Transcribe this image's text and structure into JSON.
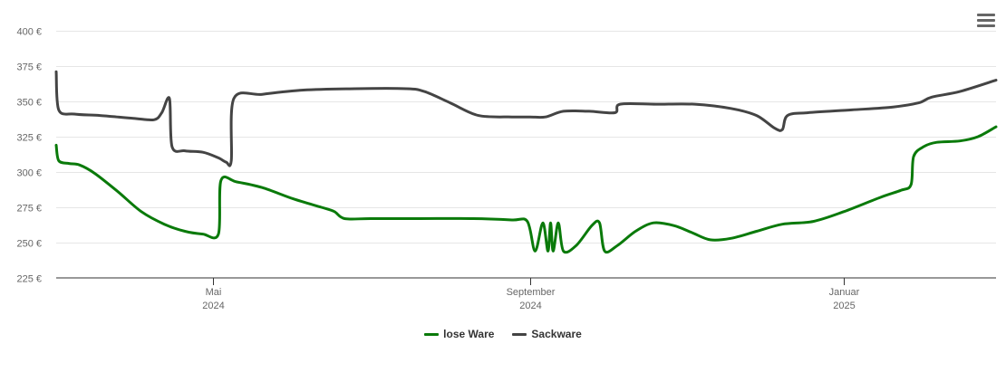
{
  "chart_data": {
    "type": "line",
    "yticks": [
      "225 €",
      "250 €",
      "275 €",
      "300 €",
      "325 €",
      "350 €",
      "375 €",
      "400 €"
    ],
    "ylim": [
      225,
      400
    ],
    "ytick_values": [
      225,
      250,
      275,
      300,
      325,
      350,
      375,
      400
    ],
    "xlim": [
      "2024-03-01",
      "2025-03-01"
    ],
    "xticks": [
      {
        "date": "2024-05-01",
        "month": "Mai",
        "year": "2024"
      },
      {
        "date": "2024-09-01",
        "month": "September",
        "year": "2024"
      },
      {
        "date": "2025-01-01",
        "month": "Januar",
        "year": "2025"
      }
    ],
    "grid": true,
    "legend_position": "bottom-center",
    "series": [
      {
        "name": "lose Ware",
        "color": "#0a7a0a",
        "points": [
          [
            "2024-03-01",
            319
          ],
          [
            "2024-03-02",
            308
          ],
          [
            "2024-03-06",
            306
          ],
          [
            "2024-03-10",
            305
          ],
          [
            "2024-03-16",
            299
          ],
          [
            "2024-03-25",
            286
          ],
          [
            "2024-04-03",
            272
          ],
          [
            "2024-04-12",
            263
          ],
          [
            "2024-04-20",
            258
          ],
          [
            "2024-04-27",
            256
          ],
          [
            "2024-05-03",
            256
          ],
          [
            "2024-05-04",
            294
          ],
          [
            "2024-05-10",
            293
          ],
          [
            "2024-05-20",
            289
          ],
          [
            "2024-06-01",
            281
          ],
          [
            "2024-06-12",
            275
          ],
          [
            "2024-06-17",
            272
          ],
          [
            "2024-06-21",
            267
          ],
          [
            "2024-07-01",
            267
          ],
          [
            "2024-07-20",
            267
          ],
          [
            "2024-08-10",
            267
          ],
          [
            "2024-08-25",
            266
          ],
          [
            "2024-08-31",
            265
          ],
          [
            "2024-09-03",
            244
          ],
          [
            "2024-09-06",
            264
          ],
          [
            "2024-09-08",
            244
          ],
          [
            "2024-09-09",
            264
          ],
          [
            "2024-09-10",
            244
          ],
          [
            "2024-09-12",
            264
          ],
          [
            "2024-09-14",
            244
          ],
          [
            "2024-09-19",
            248
          ],
          [
            "2024-09-25",
            262
          ],
          [
            "2024-09-28",
            264
          ],
          [
            "2024-09-30",
            244
          ],
          [
            "2024-10-05",
            248
          ],
          [
            "2024-10-12",
            258
          ],
          [
            "2024-10-19",
            264
          ],
          [
            "2024-10-27",
            262
          ],
          [
            "2024-11-03",
            257
          ],
          [
            "2024-11-10",
            252
          ],
          [
            "2024-11-18",
            253
          ],
          [
            "2024-11-28",
            258
          ],
          [
            "2024-12-08",
            263
          ],
          [
            "2024-12-20",
            265
          ],
          [
            "2025-01-01",
            272
          ],
          [
            "2025-01-15",
            282
          ],
          [
            "2025-01-23",
            287
          ],
          [
            "2025-01-27",
            291
          ],
          [
            "2025-01-28",
            311
          ],
          [
            "2025-02-01",
            318
          ],
          [
            "2025-02-06",
            321
          ],
          [
            "2025-02-15",
            322
          ],
          [
            "2025-02-22",
            325
          ],
          [
            "2025-03-01",
            332
          ]
        ]
      },
      {
        "name": "Sackware",
        "color": "#444444",
        "points": [
          [
            "2024-03-01",
            371
          ],
          [
            "2024-03-02",
            344
          ],
          [
            "2024-03-08",
            341
          ],
          [
            "2024-03-18",
            340
          ],
          [
            "2024-03-31",
            338
          ],
          [
            "2024-04-08",
            337
          ],
          [
            "2024-04-11",
            342
          ],
          [
            "2024-04-14",
            352
          ],
          [
            "2024-04-15",
            318
          ],
          [
            "2024-04-20",
            315
          ],
          [
            "2024-04-27",
            314
          ],
          [
            "2024-05-03",
            310
          ],
          [
            "2024-05-06",
            307
          ],
          [
            "2024-05-08",
            308
          ],
          [
            "2024-05-09",
            352
          ],
          [
            "2024-05-20",
            355
          ],
          [
            "2024-06-05",
            358
          ],
          [
            "2024-06-25",
            359
          ],
          [
            "2024-07-15",
            359
          ],
          [
            "2024-07-22",
            357
          ],
          [
            "2024-08-01",
            349
          ],
          [
            "2024-08-12",
            340
          ],
          [
            "2024-08-25",
            339
          ],
          [
            "2024-09-01",
            339
          ],
          [
            "2024-09-07",
            339
          ],
          [
            "2024-09-14",
            343
          ],
          [
            "2024-09-24",
            343
          ],
          [
            "2024-10-04",
            342
          ],
          [
            "2024-10-06",
            348
          ],
          [
            "2024-10-20",
            348
          ],
          [
            "2024-11-04",
            348
          ],
          [
            "2024-11-18",
            345
          ],
          [
            "2024-11-28",
            340
          ],
          [
            "2024-12-05",
            331
          ],
          [
            "2024-12-08",
            330
          ],
          [
            "2024-12-10",
            340
          ],
          [
            "2024-12-18",
            342
          ],
          [
            "2025-01-04",
            344
          ],
          [
            "2025-01-20",
            346
          ],
          [
            "2025-01-30",
            349
          ],
          [
            "2025-02-04",
            353
          ],
          [
            "2025-02-15",
            357
          ],
          [
            "2025-03-01",
            365
          ]
        ]
      }
    ]
  }
}
